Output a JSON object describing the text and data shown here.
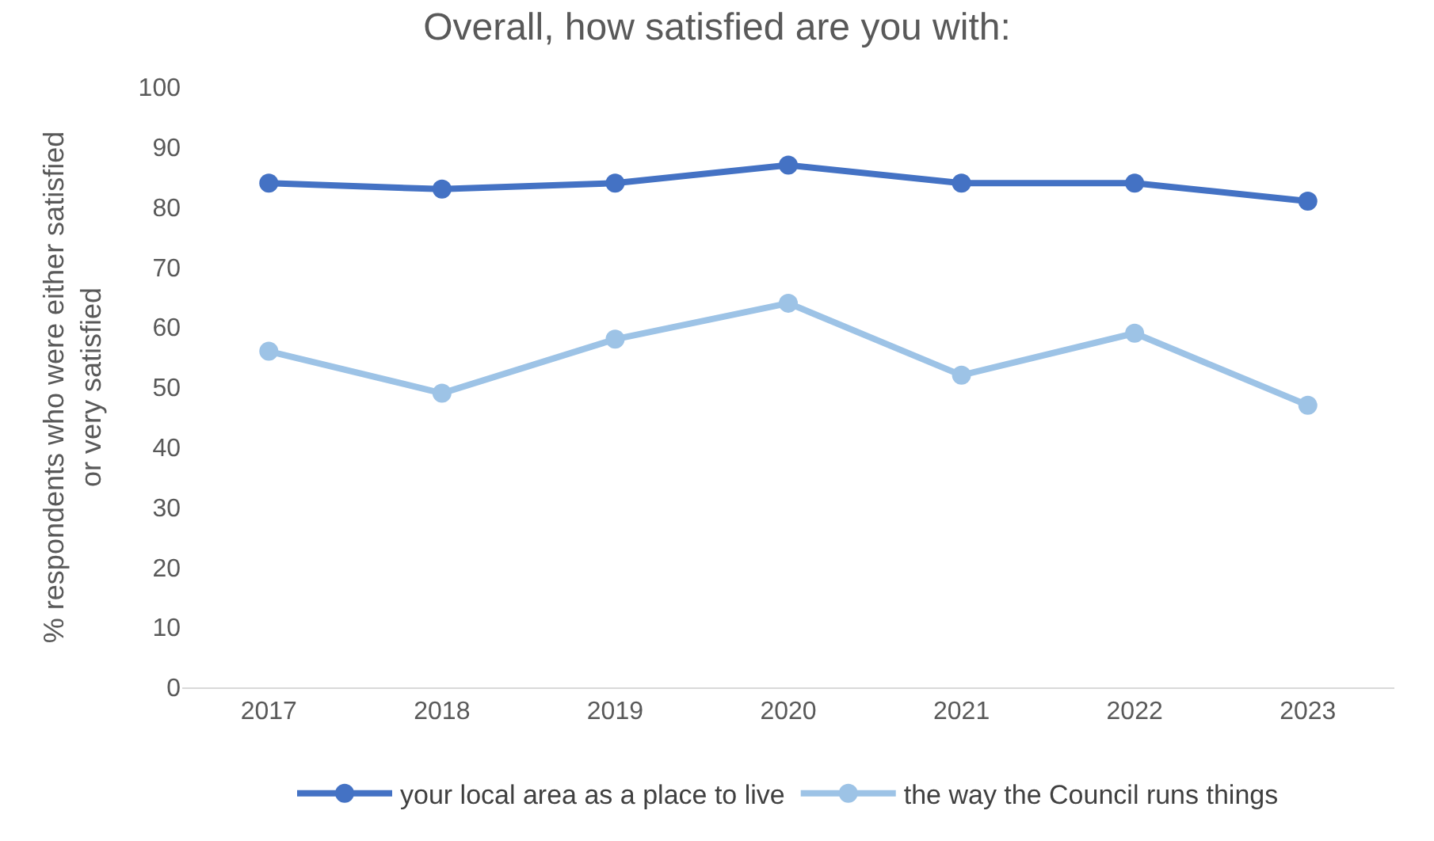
{
  "chart_data": {
    "type": "line",
    "title": "Overall, how satisfied are you with:",
    "ylabel": "% respondents who were either satisfied\nor very satisfied",
    "categories": [
      "2017",
      "2018",
      "2019",
      "2020",
      "2021",
      "2022",
      "2023"
    ],
    "series": [
      {
        "name": "your local area as a place to live",
        "color": "#4472c4",
        "values": [
          84,
          83,
          84,
          87,
          84,
          84,
          81
        ]
      },
      {
        "name": "the way the Council runs things",
        "color": "#9dc3e6",
        "values": [
          56,
          49,
          58,
          64,
          52,
          59,
          47
        ]
      }
    ],
    "ylim": [
      0,
      100
    ],
    "yticks": [
      0,
      10,
      20,
      30,
      40,
      50,
      60,
      70,
      80,
      90,
      100
    ],
    "grid": false,
    "legend": "bottom",
    "marker": "circle",
    "line_style": "solid"
  }
}
